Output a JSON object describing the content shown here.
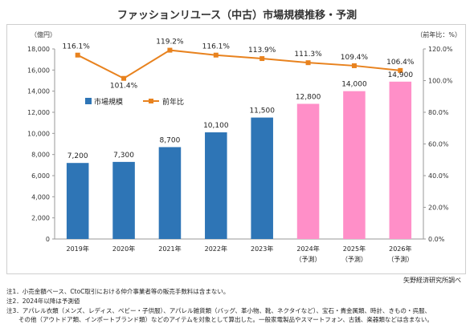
{
  "title": "ファッションリユース（中古）市場規模推移・予測",
  "chart_data": {
    "type": "bar",
    "title": "ファッションリユース（中古）市場規模推移・予測",
    "categories": [
      "2019年",
      "2020年",
      "2021年",
      "2022年",
      "2023年",
      "2024年",
      "2025年",
      "2026年"
    ],
    "category_sublabels": [
      "",
      "",
      "",
      "",
      "",
      "（予測）",
      "（予測）",
      "（予測）"
    ],
    "series": [
      {
        "name": "市場規模",
        "type": "bar",
        "axis": "left",
        "values": [
          7200,
          7300,
          8700,
          10100,
          11500,
          12800,
          14000,
          14900
        ],
        "labels": [
          "7,200",
          "7,300",
          "8,700",
          "10,100",
          "11,500",
          "12,800",
          "14,000",
          "14,900"
        ],
        "color": "#2E75B6",
        "forecast_color": "#FF8FC8",
        "forecast_from_index": 5
      },
      {
        "name": "前年比",
        "type": "line",
        "axis": "right",
        "values": [
          116.1,
          101.4,
          119.2,
          116.1,
          113.9,
          111.3,
          109.4,
          106.4
        ],
        "labels": [
          "116.1%",
          "101.4%",
          "119.2%",
          "116.1%",
          "113.9%",
          "111.3%",
          "109.4%",
          "106.4%"
        ],
        "color": "#E8821E"
      }
    ],
    "y_left": {
      "unit_label": "（億円）",
      "min": 0,
      "max": 18000,
      "step": 2000,
      "tick_labels": [
        "0",
        "2,000",
        "4,000",
        "6,000",
        "8,000",
        "10,000",
        "12,000",
        "14,000",
        "16,000",
        "18,000"
      ]
    },
    "y_right": {
      "unit_label": "（前年比：%）",
      "min": 0,
      "max": 120,
      "step": 20,
      "tick_labels": [
        "0.0%",
        "20.0%",
        "40.0%",
        "60.0%",
        "80.0%",
        "100.0%",
        "120.0%"
      ]
    },
    "legend_position": "center-left",
    "grid": false
  },
  "source": "矢野経済研究所調べ",
  "notes": [
    "注1．小売金額ベース、CtoC取引における仲介事業者等の販売手数料は含まない。",
    "注2．2024年以降は予測値",
    "注3．アパレル衣類（メンズ、レディス、ベビー・子供服）、アパレル雑貨類（バッグ、革小物、靴、ネクタイなど）、宝石・貴金属類、時計、きもの・呉服、",
    "　　その他（アウトドア類、インポートブランド類）などのアイテムを対象として算出した。一般家電製品やスマートフォン、古銭、楽器類などは含まない。"
  ]
}
